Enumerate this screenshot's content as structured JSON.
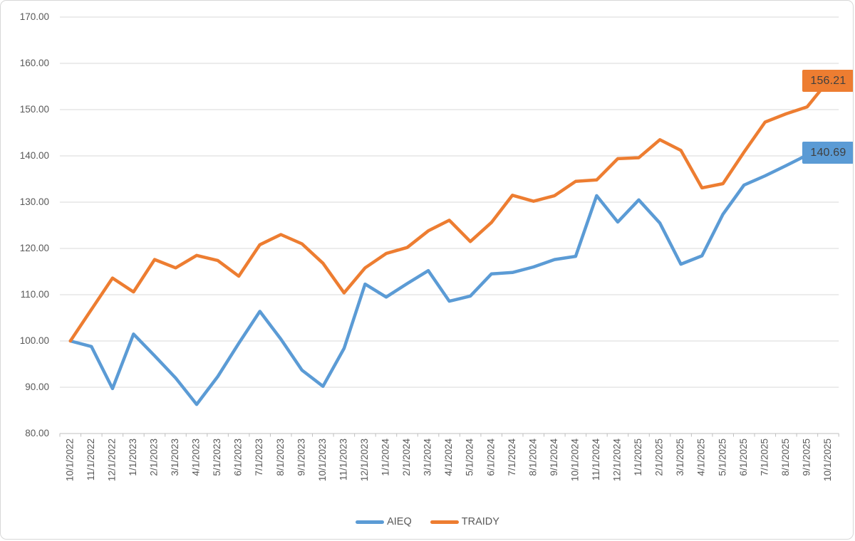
{
  "chart_data": {
    "type": "line",
    "title": "",
    "xlabel": "",
    "ylabel": "",
    "grid": true,
    "legend_position": "bottom",
    "categories": [
      "10/1/2022",
      "11/1/2022",
      "12/1/2022",
      "1/1/2023",
      "2/1/2023",
      "3/1/2023",
      "4/1/2023",
      "5/1/2023",
      "6/1/2023",
      "7/1/2023",
      "8/1/2023",
      "9/1/2023",
      "10/1/2023",
      "11/1/2023",
      "12/1/2023",
      "1/1/2024",
      "2/1/2024",
      "3/1/2024",
      "4/1/2024",
      "5/1/2024",
      "6/1/2024",
      "7/1/2024",
      "8/1/2024",
      "9/1/2024",
      "10/1/2024",
      "11/1/2024",
      "12/1/2024",
      "1/1/2025",
      "2/1/2025",
      "3/1/2025",
      "4/1/2025",
      "5/1/2025",
      "6/1/2025",
      "7/1/2025",
      "8/1/2025",
      "9/1/2025",
      "10/1/2025"
    ],
    "series": [
      {
        "name": "AIEQ",
        "color": "#5B9BD5",
        "end_label": "140.69",
        "values": [
          100.0,
          98.8,
          89.7,
          101.5,
          96.8,
          92.0,
          86.3,
          92.3,
          99.5,
          106.4,
          100.4,
          93.7,
          90.2,
          98.4,
          112.3,
          109.5,
          112.4,
          115.2,
          108.6,
          109.7,
          114.5,
          114.8,
          116.0,
          117.6,
          118.3,
          131.4,
          125.7,
          130.5,
          125.5,
          116.6,
          118.4,
          127.4,
          133.7,
          135.7,
          137.9,
          140.2,
          140.69
        ]
      },
      {
        "name": "TRAIDY",
        "color": "#ED7D31",
        "end_label": "156.21",
        "values": [
          100.0,
          106.8,
          113.6,
          110.6,
          117.6,
          115.8,
          118.5,
          117.4,
          114.0,
          120.8,
          123.0,
          121.0,
          116.8,
          110.4,
          115.8,
          118.9,
          120.2,
          123.8,
          126.1,
          121.5,
          125.6,
          131.5,
          130.2,
          131.4,
          134.5,
          134.8,
          139.4,
          139.6,
          143.5,
          141.2,
          133.1,
          134.0,
          140.8,
          147.3,
          149.1,
          150.6,
          156.21
        ]
      }
    ],
    "y_axis": {
      "min": 80,
      "max": 170,
      "step": 10,
      "tick_labels": [
        "80.00",
        "90.00",
        "100.00",
        "110.00",
        "120.00",
        "130.00",
        "140.00",
        "150.00",
        "160.00",
        "170.00"
      ]
    },
    "colors": {
      "gridline": "#D9D9D9",
      "axis_line": "#BFBFBF",
      "tick_label": "#595959",
      "data_label_text": "#404040",
      "frame_border": "#D7D7D7"
    }
  }
}
